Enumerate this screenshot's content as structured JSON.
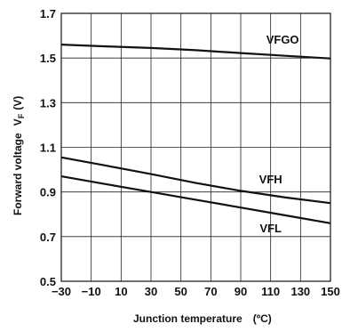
{
  "chart_data": {
    "type": "line",
    "xlabel": "Junction temperature",
    "xlabel_unit": "(ºC)",
    "ylabel": "Forward voltage",
    "ylabel_symbol": "V",
    "ylabel_subscript": "F",
    "ylabel_unit": "(V)",
    "xlim": [
      -30,
      150
    ],
    "ylim": [
      0.5,
      1.7
    ],
    "x_ticks": [
      "−30",
      "−10",
      "10",
      "30",
      "50",
      "70",
      "90",
      "110",
      "130",
      "150"
    ],
    "y_ticks": [
      "0.5",
      "0.7",
      "0.9",
      "1.1",
      "1.3",
      "1.5",
      "1.7"
    ],
    "grid": true,
    "series": [
      {
        "name": "VFGO",
        "x": [
          -30,
          0,
          30,
          60,
          90,
          120,
          150
        ],
        "y": [
          1.56,
          1.552,
          1.545,
          1.535,
          1.522,
          1.51,
          1.498
        ],
        "color": "#111111"
      },
      {
        "name": "VFH",
        "x": [
          -30,
          0,
          30,
          60,
          90,
          120,
          150
        ],
        "y": [
          1.055,
          1.018,
          0.98,
          0.94,
          0.905,
          0.875,
          0.85
        ],
        "color": "#111111"
      },
      {
        "name": "VFL",
        "x": [
          -30,
          0,
          30,
          60,
          90,
          120,
          150
        ],
        "y": [
          0.97,
          0.935,
          0.9,
          0.865,
          0.83,
          0.795,
          0.76
        ],
        "color": "#111111"
      }
    ]
  }
}
